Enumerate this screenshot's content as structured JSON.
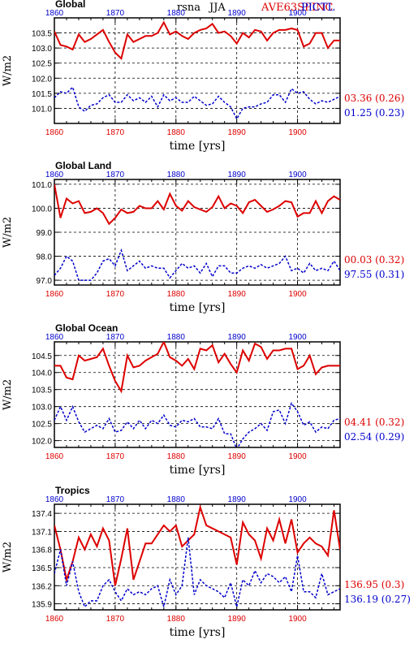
{
  "header": {
    "variable": "rsna",
    "season": "JJA",
    "exp_label": "AVE63SPINC",
    "ctl_label": "PICTL"
  },
  "colors": {
    "exp": "#dd0000",
    "ctl": "#0000cc"
  },
  "chart_data": [
    {
      "type": "line",
      "title": "Global",
      "xlabel": "time [yrs]",
      "ylabel": "W/m2",
      "xlim": [
        1860,
        1907
      ],
      "ylim": [
        100.5,
        104.0
      ],
      "yticks": [
        101.0,
        101.5,
        102.0,
        102.5,
        103.0,
        103.5
      ],
      "ytick_labels": [
        "101.0",
        "101.5",
        "102.0",
        "102.5",
        "103.0",
        "103.5"
      ],
      "xticks": [
        1860,
        1870,
        1880,
        1890,
        1900
      ],
      "xtick_labels_top": [
        "1860",
        "1870",
        "1880",
        "1890",
        "1900"
      ],
      "xtick_labels_bottom": [
        "1860",
        "1870",
        "1880",
        "1890",
        "1900"
      ],
      "grid": true,
      "series": [
        {
          "key": "exp",
          "stat": "03.36 (0.26)",
          "values": [
            103.55,
            103.1,
            103.05,
            102.95,
            103.45,
            103.2,
            103.3,
            103.45,
            103.6,
            103.2,
            102.85,
            102.65,
            103.45,
            103.2,
            103.3,
            103.4,
            103.4,
            103.5,
            103.85,
            103.45,
            103.55,
            103.4,
            103.3,
            103.5,
            103.6,
            103.65,
            103.8,
            103.5,
            103.55,
            103.4,
            103.15,
            103.5,
            103.35,
            103.6,
            103.55,
            103.25,
            103.5,
            103.6,
            103.6,
            103.65,
            103.6,
            103.05,
            103.15,
            103.5,
            103.5,
            103.0,
            103.25,
            103.25
          ]
        },
        {
          "key": "ctl",
          "stat": "01.25 (0.23)",
          "values": [
            101.35,
            101.55,
            101.5,
            101.7,
            101.05,
            100.9,
            101.1,
            101.15,
            101.35,
            101.45,
            101.2,
            101.2,
            101.45,
            101.25,
            101.35,
            101.2,
            101.4,
            101.05,
            101.45,
            101.25,
            101.35,
            101.2,
            101.2,
            101.4,
            101.25,
            101.1,
            101.15,
            101.4,
            101.2,
            101.05,
            100.65,
            101.0,
            101.05,
            101.05,
            101.15,
            101.2,
            101.45,
            101.45,
            101.2,
            101.65,
            101.5,
            101.55,
            101.3,
            101.15,
            101.25,
            101.2,
            101.3,
            101.4
          ]
        }
      ]
    },
    {
      "type": "line",
      "title": "Global Land",
      "xlabel": "time [yrs]",
      "ylabel": "W/m2",
      "xlim": [
        1860,
        1907
      ],
      "ylim": [
        96.8,
        101.2
      ],
      "yticks": [
        97.0,
        98.0,
        99.0,
        100.0,
        101.0
      ],
      "ytick_labels": [
        "97.0",
        "98.0",
        "99.0",
        "100.0",
        "101.0"
      ],
      "xticks": [
        1860,
        1870,
        1880,
        1890,
        1900
      ],
      "xtick_labels_top": [
        "1860",
        "1870",
        "1880",
        "1890",
        "1900"
      ],
      "xtick_labels_bottom": [
        "1860",
        "1870",
        "1880",
        "1890",
        "1900"
      ],
      "grid": true,
      "series": [
        {
          "key": "exp",
          "stat": "00.03 (0.32)",
          "values": [
            101.0,
            99.6,
            100.4,
            100.2,
            100.3,
            99.8,
            99.85,
            100.0,
            99.8,
            99.35,
            99.6,
            99.95,
            99.8,
            99.85,
            100.1,
            100.0,
            100.0,
            100.3,
            99.95,
            100.6,
            100.1,
            99.9,
            100.3,
            100.05,
            99.95,
            99.85,
            100.05,
            100.5,
            100.0,
            100.2,
            100.1,
            99.8,
            100.25,
            100.35,
            100.1,
            99.85,
            99.95,
            100.1,
            100.3,
            100.25,
            99.65,
            99.8,
            99.8,
            100.3,
            99.8,
            100.3,
            100.5,
            100.35
          ]
        },
        {
          "key": "ctl",
          "stat": "97.55 (0.31)",
          "values": [
            97.2,
            97.5,
            98.0,
            97.8,
            97.0,
            97.0,
            97.0,
            97.3,
            97.8,
            97.9,
            97.6,
            98.25,
            97.4,
            97.6,
            97.8,
            97.5,
            97.6,
            97.5,
            97.5,
            97.1,
            97.4,
            97.7,
            97.5,
            97.6,
            97.3,
            97.7,
            97.15,
            97.6,
            97.6,
            97.3,
            97.3,
            97.5,
            97.6,
            97.5,
            97.65,
            97.5,
            97.6,
            97.7,
            98.0,
            97.4,
            97.5,
            97.3,
            97.7,
            97.4,
            97.5,
            97.4,
            97.8,
            97.4
          ]
        }
      ]
    },
    {
      "type": "line",
      "title": "Global Ocean",
      "xlabel": "time [yrs]",
      "ylabel": "W/m2",
      "xlim": [
        1860,
        1907
      ],
      "ylim": [
        101.8,
        104.9
      ],
      "yticks": [
        102.0,
        102.5,
        103.0,
        103.5,
        104.0,
        104.5
      ],
      "ytick_labels": [
        "102.0",
        "102.5",
        "103.0",
        "103.5",
        "104.0",
        "104.5"
      ],
      "xticks": [
        1860,
        1870,
        1880,
        1890,
        1900
      ],
      "xtick_labels_top": [
        "1860",
        "1870",
        "1880",
        "1890",
        "1900"
      ],
      "xtick_labels_bottom": [
        "1860",
        "1870",
        "1880",
        "1890",
        "1900"
      ],
      "grid": true,
      "series": [
        {
          "key": "exp",
          "stat": "04.41 (0.32)",
          "values": [
            104.2,
            104.2,
            103.85,
            103.8,
            104.5,
            104.35,
            104.4,
            104.45,
            104.7,
            104.2,
            103.75,
            103.45,
            104.5,
            104.15,
            104.2,
            104.35,
            104.45,
            104.55,
            104.9,
            104.45,
            104.35,
            104.2,
            104.4,
            104.1,
            104.7,
            104.65,
            104.8,
            104.3,
            104.55,
            104.25,
            104.0,
            104.65,
            104.35,
            104.85,
            104.75,
            104.4,
            104.65,
            104.65,
            104.7,
            104.7,
            104.1,
            104.2,
            104.5,
            103.95,
            104.15,
            104.2,
            104.2,
            104.2
          ]
        },
        {
          "key": "ctl",
          "stat": "02.54 (0.29)",
          "values": [
            102.6,
            103.0,
            102.6,
            103.0,
            102.55,
            102.25,
            102.35,
            102.45,
            102.35,
            102.65,
            102.25,
            102.3,
            102.55,
            102.35,
            102.6,
            102.35,
            102.6,
            102.5,
            102.75,
            102.45,
            102.4,
            102.6,
            102.55,
            102.65,
            102.4,
            102.4,
            102.35,
            102.65,
            102.2,
            102.2,
            101.75,
            102.05,
            102.25,
            102.35,
            102.5,
            102.3,
            102.85,
            102.9,
            102.5,
            103.1,
            102.85,
            102.45,
            102.55,
            102.25,
            102.4,
            102.35,
            102.6,
            102.65
          ]
        }
      ]
    },
    {
      "type": "line",
      "title": "Tropics",
      "xlabel": "time [yrs]",
      "ylabel": "W/m2",
      "xlim": [
        1860,
        1907
      ],
      "ylim": [
        135.8,
        137.55
      ],
      "yticks": [
        135.9,
        136.2,
        136.5,
        136.8,
        137.1,
        137.4
      ],
      "ytick_labels": [
        "135.9",
        "136.2",
        "136.5",
        "136.8",
        "137.1",
        "137.4"
      ],
      "xticks": [
        1860,
        1870,
        1880,
        1890,
        1900
      ],
      "xtick_labels_top": [
        "1860",
        "1870",
        "1880",
        "1890",
        "1900"
      ],
      "xtick_labels_bottom": [
        "1860",
        "1870",
        "1880",
        "1890",
        "1900"
      ],
      "grid": true,
      "series": [
        {
          "key": "exp",
          "stat": "136.95 (0.3)",
          "values": [
            137.2,
            136.8,
            136.3,
            136.6,
            137.0,
            136.8,
            137.05,
            136.85,
            137.15,
            136.95,
            136.2,
            136.65,
            137.15,
            136.3,
            136.6,
            136.9,
            136.9,
            137.05,
            137.2,
            137.1,
            137.2,
            136.85,
            136.95,
            137.05,
            137.5,
            137.2,
            137.15,
            137.1,
            137.05,
            137.0,
            136.55,
            137.25,
            137.05,
            136.95,
            136.65,
            137.15,
            136.95,
            137.3,
            136.9,
            137.3,
            136.75,
            136.9,
            137.0,
            136.9,
            136.85,
            136.7,
            137.45,
            136.8
          ]
        },
        {
          "key": "ctl",
          "stat": "136.19 (0.27)",
          "values": [
            136.4,
            136.8,
            136.2,
            136.6,
            136.1,
            135.85,
            135.95,
            135.95,
            136.2,
            136.3,
            136.1,
            135.95,
            136.15,
            136.05,
            136.1,
            136.05,
            136.15,
            136.2,
            135.85,
            136.3,
            136.05,
            136.2,
            137.0,
            136.05,
            136.3,
            136.2,
            136.15,
            136.1,
            136.0,
            136.25,
            135.85,
            136.3,
            136.2,
            136.45,
            136.25,
            136.4,
            136.35,
            136.25,
            136.35,
            136.1,
            136.7,
            136.1,
            136.1,
            136.0,
            136.4,
            136.05,
            136.1,
            136.15
          ]
        }
      ]
    }
  ]
}
